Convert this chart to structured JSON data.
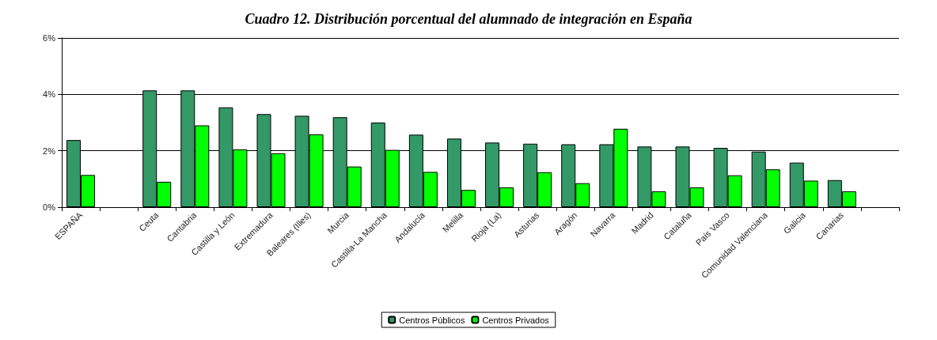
{
  "chart_data": {
    "type": "bar",
    "title": "Cuadro 12. Distribución porcentual del alumnado de integración en España",
    "categories": [
      "ESPAÑA",
      null,
      "Ceuta",
      "Cantabria",
      "Castilla y León",
      "Extremadura",
      "Baleares (Illes)",
      "Murcia",
      "Castilla-La Mancha",
      "Andalucía",
      "Melilla",
      "Rioja (La)",
      "Asturias",
      "Aragón",
      "Navarra",
      "Madrid",
      "Cataluña",
      "País Vasco",
      "Comunidad Valenciana",
      "Galicia",
      "Canarias",
      null
    ],
    "series": [
      {
        "name": "Centros Públicos",
        "color": "#339966",
        "values": [
          2.38,
          null,
          4.14,
          4.14,
          3.54,
          3.3,
          3.24,
          3.19,
          3.0,
          2.57,
          2.43,
          2.29,
          2.25,
          2.23,
          2.23,
          2.15,
          2.15,
          2.1,
          1.97,
          1.58,
          0.96,
          null
        ]
      },
      {
        "name": "Centros Privados",
        "color": "#00ff00",
        "values": [
          1.14,
          null,
          0.9,
          2.9,
          2.05,
          1.91,
          2.58,
          1.44,
          2.03,
          1.25,
          0.61,
          0.7,
          1.24,
          0.85,
          2.78,
          0.56,
          0.7,
          1.13,
          1.34,
          0.94,
          0.56,
          null
        ]
      }
    ],
    "ylim": [
      0,
      6
    ],
    "yticks": [
      {
        "value": 0,
        "label": "0%"
      },
      {
        "value": 2,
        "label": "2%"
      },
      {
        "value": 4,
        "label": "4%"
      },
      {
        "value": 6,
        "label": "6%"
      }
    ],
    "grid": "y",
    "legend": "bottom"
  }
}
